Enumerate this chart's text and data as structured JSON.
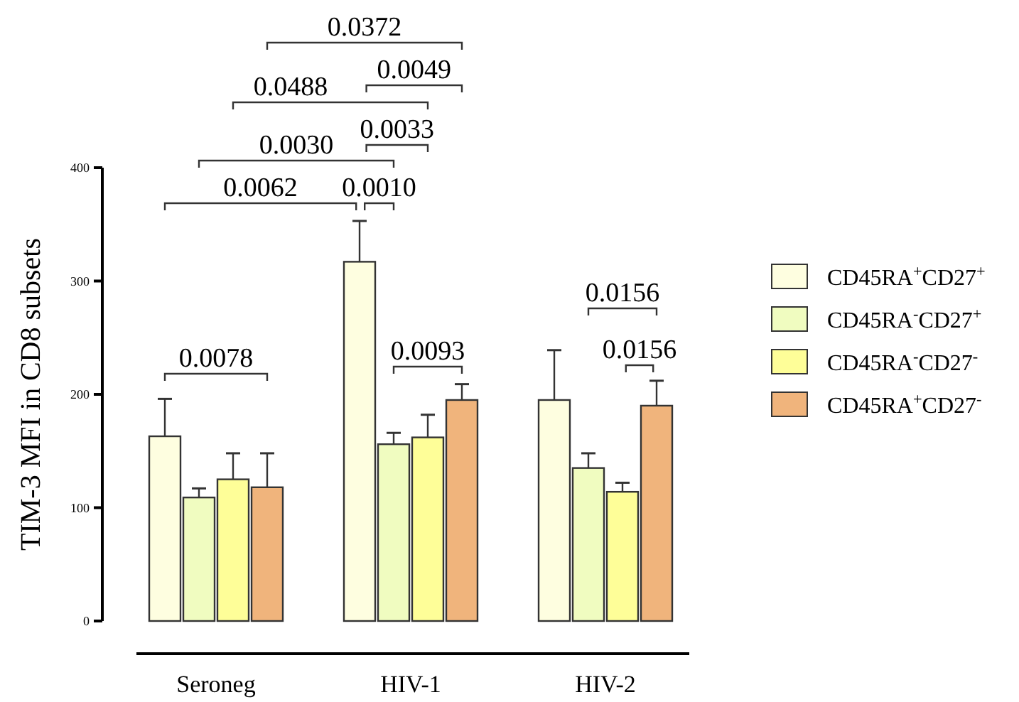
{
  "chart_data": {
    "type": "bar",
    "ylabel": "TIM-3 MFI in CD8 subsets",
    "categories": [
      "Seroneg",
      "HIV-1",
      "HIV-2"
    ],
    "ylim": [
      0,
      400
    ],
    "yticks": [
      0,
      100,
      200,
      300,
      400
    ],
    "grid": false,
    "legend": "right",
    "series": [
      {
        "name": "CD45RA$^{+}$CD27$^{+}$",
        "color": "#fefee0",
        "values": [
          163,
          317,
          195
        ],
        "errors": [
          [
            163,
            196
          ],
          [
            317,
            353
          ],
          [
            195,
            239
          ]
        ]
      },
      {
        "name": "CD45RA$^{-}$CD27$^{+}$",
        "color": "#f0fcc0",
        "values": [
          109,
          156,
          135
        ],
        "errors": [
          [
            109,
            117
          ],
          [
            156,
            166
          ],
          [
            135,
            148
          ]
        ]
      },
      {
        "name": "CD45RA$^{-}$CD27$^{-}$",
        "color": "#fefe98",
        "values": [
          125,
          162,
          114
        ],
        "errors": [
          [
            125,
            148
          ],
          [
            162,
            182
          ],
          [
            114,
            122
          ]
        ]
      },
      {
        "name": "CD45RA$^{+}$CD27$^{-}$",
        "color": "#f0b47c",
        "values": [
          118,
          195,
          190
        ],
        "errors": [
          [
            118,
            148
          ],
          [
            195,
            209
          ],
          [
            190,
            212
          ]
        ]
      }
    ],
    "annotations": [
      "0.0372",
      "0.0049",
      "0.0488",
      "0.0033",
      "0.0030",
      "0.0062",
      "0.0010",
      "0.0078",
      "0.0093",
      "0.0156",
      "0.0156"
    ]
  }
}
